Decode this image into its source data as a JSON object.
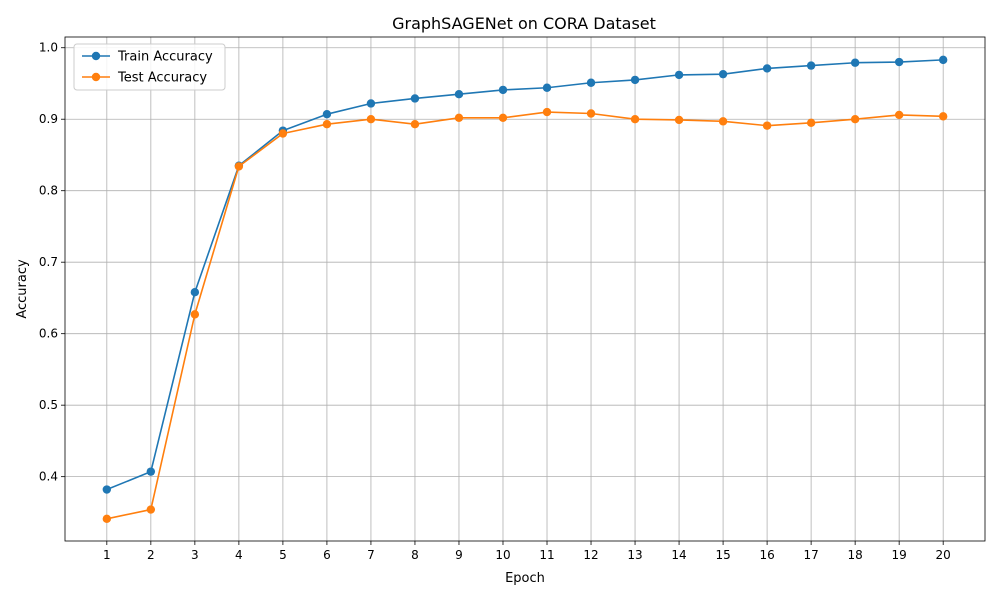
{
  "chart_data": {
    "type": "line",
    "title": "GraphSAGENet on CORA Dataset",
    "xlabel": "Epoch",
    "ylabel": "Accuracy",
    "x": [
      1,
      2,
      3,
      4,
      5,
      6,
      7,
      8,
      9,
      10,
      11,
      12,
      13,
      14,
      15,
      16,
      17,
      18,
      19,
      20
    ],
    "yticks": [
      0.4,
      0.5,
      0.6,
      0.7,
      0.8,
      0.9,
      1.0
    ],
    "ylim": [
      0.31,
      1.015
    ],
    "xlim": [
      0.05,
      20.95
    ],
    "grid": true,
    "legend_position": "upper-left",
    "series": [
      {
        "name": "Train Accuracy",
        "color": "#1f77b4",
        "values": [
          0.382,
          0.407,
          0.658,
          0.835,
          0.884,
          0.907,
          0.922,
          0.929,
          0.935,
          0.941,
          0.944,
          0.951,
          0.955,
          0.962,
          0.963,
          0.971,
          0.975,
          0.979,
          0.98,
          0.983
        ]
      },
      {
        "name": "Test Accuracy",
        "color": "#ff7f0e",
        "values": [
          0.341,
          0.354,
          0.627,
          0.834,
          0.88,
          0.893,
          0.9,
          0.893,
          0.902,
          0.902,
          0.91,
          0.908,
          0.9,
          0.899,
          0.897,
          0.891,
          0.895,
          0.9,
          0.906,
          0.904
        ]
      }
    ]
  }
}
